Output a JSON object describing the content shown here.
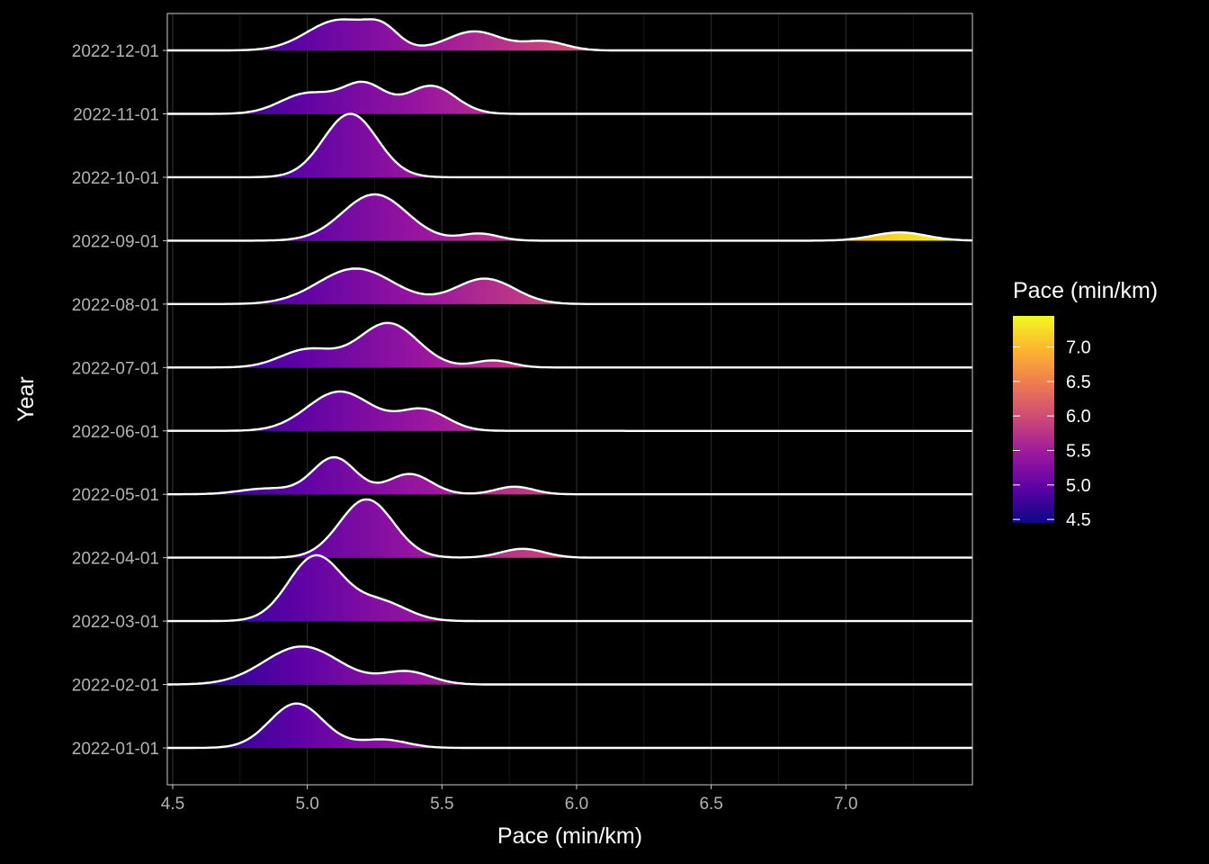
{
  "chart_data": {
    "type": "ridgeline",
    "title": "",
    "xlabel": "Pace (min/km)",
    "ylabel": "Year",
    "xlim": [
      4.48,
      7.47
    ],
    "x_ticks": [
      4.5,
      5.0,
      5.5,
      6.0,
      6.5,
      7.0
    ],
    "x_tick_labels": [
      "4.5",
      "5.0",
      "5.5",
      "6.0",
      "6.5",
      "7.0"
    ],
    "grid": true,
    "theme": "black",
    "line_color": "#ffffff",
    "legend": {
      "title": "Pace (min/km)",
      "position": "right",
      "range": [
        4.45,
        7.45
      ],
      "breaks": [
        4.5,
        5.0,
        5.5,
        6.0,
        6.5,
        7.0
      ],
      "labels": [
        "4.5",
        "5.0",
        "5.5",
        "6.0",
        "6.5",
        "7.0"
      ],
      "palette": [
        "#0d0887",
        "#5c01a6",
        "#9c179e",
        "#cc4778",
        "#ed7953",
        "#fdb42f",
        "#f0f921"
      ]
    },
    "ridge_scale_note": "heights are relative density (1.0 = one category spacing)",
    "series": [
      {
        "name": "2022-01-01",
        "components": [
          {
            "mu": 4.96,
            "sd": 0.1,
            "h": 0.7
          },
          {
            "mu": 5.28,
            "sd": 0.09,
            "h": 0.13
          }
        ]
      },
      {
        "name": "2022-02-01",
        "components": [
          {
            "mu": 4.98,
            "sd": 0.14,
            "h": 0.6
          },
          {
            "mu": 5.37,
            "sd": 0.09,
            "h": 0.2
          }
        ]
      },
      {
        "name": "2022-03-01",
        "components": [
          {
            "mu": 5.03,
            "sd": 0.1,
            "h": 1.02
          },
          {
            "mu": 5.27,
            "sd": 0.1,
            "h": 0.3
          }
        ]
      },
      {
        "name": "2022-04-01",
        "components": [
          {
            "mu": 5.22,
            "sd": 0.1,
            "h": 0.92
          },
          {
            "mu": 5.8,
            "sd": 0.08,
            "h": 0.14
          }
        ]
      },
      {
        "name": "2022-05-01",
        "components": [
          {
            "mu": 4.85,
            "sd": 0.1,
            "h": 0.09
          },
          {
            "mu": 5.1,
            "sd": 0.08,
            "h": 0.58
          },
          {
            "mu": 5.38,
            "sd": 0.08,
            "h": 0.32
          },
          {
            "mu": 5.77,
            "sd": 0.07,
            "h": 0.12
          }
        ]
      },
      {
        "name": "2022-06-01",
        "components": [
          {
            "mu": 5.12,
            "sd": 0.12,
            "h": 0.62
          },
          {
            "mu": 5.43,
            "sd": 0.09,
            "h": 0.33
          }
        ]
      },
      {
        "name": "2022-07-01",
        "components": [
          {
            "mu": 5.0,
            "sd": 0.1,
            "h": 0.28
          },
          {
            "mu": 5.3,
            "sd": 0.11,
            "h": 0.7
          },
          {
            "mu": 5.69,
            "sd": 0.07,
            "h": 0.11
          }
        ]
      },
      {
        "name": "2022-08-01",
        "components": [
          {
            "mu": 5.18,
            "sd": 0.14,
            "h": 0.56
          },
          {
            "mu": 5.66,
            "sd": 0.11,
            "h": 0.4
          }
        ]
      },
      {
        "name": "2022-09-01",
        "components": [
          {
            "mu": 5.25,
            "sd": 0.12,
            "h": 0.73
          },
          {
            "mu": 5.64,
            "sd": 0.07,
            "h": 0.11
          },
          {
            "mu": 7.2,
            "sd": 0.1,
            "h": 0.13
          }
        ]
      },
      {
        "name": "2022-10-01",
        "components": [
          {
            "mu": 5.16,
            "sd": 0.1,
            "h": 1.0
          }
        ]
      },
      {
        "name": "2022-11-01",
        "components": [
          {
            "mu": 5.0,
            "sd": 0.1,
            "h": 0.32
          },
          {
            "mu": 5.21,
            "sd": 0.08,
            "h": 0.46
          },
          {
            "mu": 5.46,
            "sd": 0.09,
            "h": 0.44
          }
        ]
      },
      {
        "name": "2022-12-01",
        "components": [
          {
            "mu": 5.12,
            "sd": 0.12,
            "h": 0.48
          },
          {
            "mu": 5.28,
            "sd": 0.06,
            "h": 0.25
          },
          {
            "mu": 5.62,
            "sd": 0.1,
            "h": 0.3
          },
          {
            "mu": 5.88,
            "sd": 0.08,
            "h": 0.14
          }
        ]
      }
    ]
  }
}
